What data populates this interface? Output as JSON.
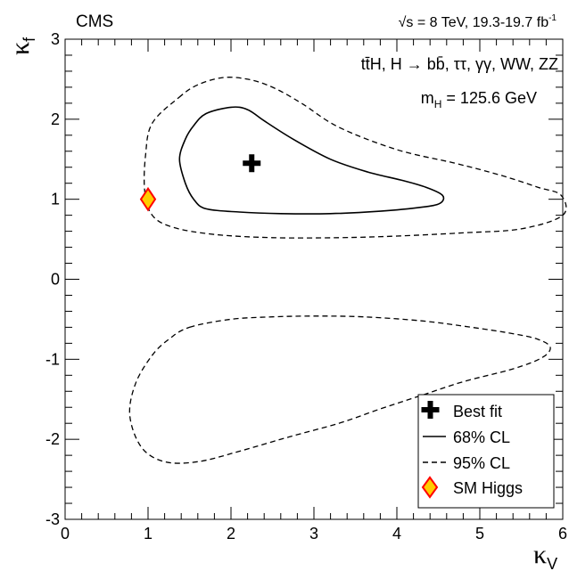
{
  "chart_data": {
    "type": "scatter",
    "experiment": "CMS",
    "energy_label": "√s = 8 TeV, 19.3-19.7 fb",
    "energy_exp": "-1",
    "channel_label": "tt̄H, H → bb̄, ττ, γγ, WW, ZZ",
    "mass_label": "m",
    "mass_sub": "H",
    "mass_value": " = 125.6 GeV",
    "xlabel": "κ",
    "xlabel_sub": "V",
    "ylabel": "κ",
    "ylabel_sub": "f",
    "xlim": [
      0,
      6
    ],
    "ylim": [
      -3,
      3
    ],
    "xticks": [
      0,
      1,
      2,
      3,
      4,
      5,
      6
    ],
    "yticks": [
      -3,
      -2,
      -1,
      0,
      1,
      2,
      3
    ],
    "best_fit": {
      "x": 2.25,
      "y": 1.45
    },
    "sm_higgs": {
      "x": 1.0,
      "y": 1.0
    },
    "contour_68": [
      [
        1.7,
        2.07
      ],
      [
        2.0,
        2.15
      ],
      [
        2.2,
        2.12
      ],
      [
        2.4,
        1.98
      ],
      [
        2.75,
        1.75
      ],
      [
        3.2,
        1.5
      ],
      [
        3.65,
        1.34
      ],
      [
        4.05,
        1.24
      ],
      [
        4.35,
        1.15
      ],
      [
        4.55,
        1.05
      ],
      [
        4.52,
        0.95
      ],
      [
        4.3,
        0.9
      ],
      [
        3.8,
        0.85
      ],
      [
        3.2,
        0.82
      ],
      [
        2.6,
        0.82
      ],
      [
        2.1,
        0.84
      ],
      [
        1.7,
        0.88
      ],
      [
        1.55,
        1.0
      ],
      [
        1.45,
        1.2
      ],
      [
        1.38,
        1.5
      ],
      [
        1.45,
        1.75
      ],
      [
        1.55,
        1.92
      ],
      [
        1.7,
        2.07
      ]
    ],
    "contour_95_upper": [
      [
        1.37,
        2.27
      ],
      [
        1.6,
        2.43
      ],
      [
        1.9,
        2.52
      ],
      [
        2.2,
        2.5
      ],
      [
        2.5,
        2.4
      ],
      [
        2.85,
        2.2
      ],
      [
        3.3,
        1.9
      ],
      [
        4.0,
        1.62
      ],
      [
        4.7,
        1.45
      ],
      [
        5.25,
        1.3
      ],
      [
        5.7,
        1.15
      ],
      [
        5.98,
        1.05
      ],
      [
        6.0,
        0.8
      ],
      [
        5.5,
        0.63
      ],
      [
        4.8,
        0.58
      ],
      [
        4.0,
        0.54
      ],
      [
        3.3,
        0.52
      ],
      [
        2.5,
        0.52
      ],
      [
        1.8,
        0.56
      ],
      [
        1.3,
        0.65
      ],
      [
        1.05,
        0.8
      ],
      [
        0.96,
        1.1
      ],
      [
        0.97,
        1.55
      ],
      [
        1.05,
        1.95
      ],
      [
        1.37,
        2.27
      ]
    ],
    "contour_95_lower": [
      [
        1.5,
        -0.6
      ],
      [
        2.0,
        -0.5
      ],
      [
        2.5,
        -0.47
      ],
      [
        3.0,
        -0.46
      ],
      [
        3.6,
        -0.47
      ],
      [
        4.3,
        -0.52
      ],
      [
        4.9,
        -0.6
      ],
      [
        5.4,
        -0.68
      ],
      [
        5.7,
        -0.75
      ],
      [
        5.85,
        -0.85
      ],
      [
        5.75,
        -0.98
      ],
      [
        5.4,
        -1.12
      ],
      [
        4.8,
        -1.28
      ],
      [
        4.3,
        -1.45
      ],
      [
        3.8,
        -1.62
      ],
      [
        3.3,
        -1.8
      ],
      [
        2.7,
        -1.97
      ],
      [
        2.1,
        -2.15
      ],
      [
        1.6,
        -2.28
      ],
      [
        1.2,
        -2.28
      ],
      [
        0.92,
        -2.1
      ],
      [
        0.78,
        -1.7
      ],
      [
        0.85,
        -1.3
      ],
      [
        1.05,
        -0.95
      ],
      [
        1.25,
        -0.75
      ],
      [
        1.5,
        -0.6
      ]
    ],
    "legend": [
      {
        "label": "Best fit",
        "marker": "cross"
      },
      {
        "label": "68% CL",
        "marker": "solid-line"
      },
      {
        "label": "95% CL",
        "marker": "dashed-line"
      },
      {
        "label": "SM Higgs",
        "marker": "diamond"
      }
    ],
    "legend_placement": "bottom-right",
    "grid": false,
    "colors": {
      "line": "#000000",
      "sm_fill": "#ffcc00",
      "sm_stroke": "#ff0000"
    }
  }
}
